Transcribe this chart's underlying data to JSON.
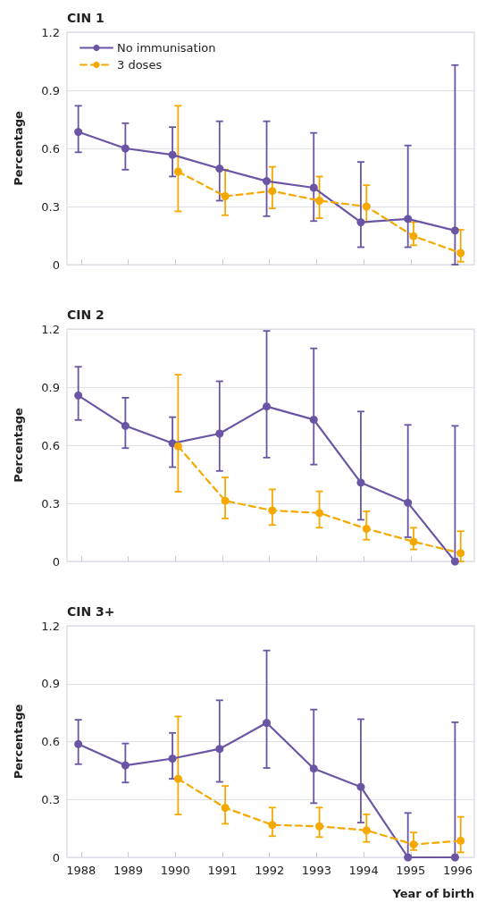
{
  "chart_data": [
    {
      "type": "line",
      "title": "CIN 1",
      "ylabel": "Percentage",
      "xlim": [
        1987.7,
        1996.35
      ],
      "xticks": [
        1988,
        1989,
        1990,
        1991,
        1992,
        1993,
        1994,
        1995,
        1996
      ],
      "ylim": [
        0,
        1.2
      ],
      "yticks": [
        0,
        0.3,
        0.6,
        0.9,
        1.2
      ],
      "grid": "y",
      "marker": "circle",
      "legend": "top left",
      "tick_labels": "y",
      "series": [
        {
          "name": "No immunisation",
          "color": "#6a55a5",
          "line_style": "solid",
          "x": [
            1987.94,
            1988.94,
            1989.94,
            1990.94,
            1991.94,
            1992.94,
            1993.94,
            1994.94,
            1995.94
          ],
          "values": [
            0.685,
            0.6,
            0.567,
            0.496,
            0.431,
            0.397,
            0.219,
            0.236,
            0.176
          ],
          "errors": [
            [
              0.58,
              0.82
            ],
            [
              0.49,
              0.73
            ],
            [
              0.455,
              0.71
            ],
            [
              0.33,
              0.74
            ],
            [
              0.25,
              0.74
            ],
            [
              0.225,
              0.68
            ],
            [
              0.09,
              0.53
            ],
            [
              0.09,
              0.615
            ],
            [
              0,
              1.03
            ]
          ]
        },
        {
          "name": "3 doses",
          "color": "#f5a800",
          "line_style": "dashed",
          "x": [
            1990.06,
            1991.06,
            1992.06,
            1993.06,
            1994.06,
            1995.06,
            1996.06
          ],
          "values": [
            0.48,
            0.353,
            0.38,
            0.33,
            0.3,
            0.147,
            0.06
          ],
          "errors": [
            [
              0.275,
              0.82
            ],
            [
              0.255,
              0.49
            ],
            [
              0.29,
              0.505
            ],
            [
              0.24,
              0.455
            ],
            [
              0.22,
              0.41
            ],
            [
              0.1,
              0.22
            ],
            [
              0.015,
              0.18
            ]
          ]
        }
      ]
    },
    {
      "type": "line",
      "title": "CIN 2",
      "ylabel": "Percentage",
      "xlim": [
        1987.7,
        1996.35
      ],
      "xticks": [
        1988,
        1989,
        1990,
        1991,
        1992,
        1993,
        1994,
        1995,
        1996
      ],
      "ylim": [
        0,
        1.2
      ],
      "yticks": [
        0,
        0.3,
        0.6,
        0.9,
        1.2
      ],
      "grid": "y",
      "marker": "circle",
      "tick_labels": "y",
      "series": [
        {
          "color": "#6a55a5",
          "line_style": "solid",
          "x": [
            1987.94,
            1988.94,
            1989.94,
            1990.94,
            1991.94,
            1992.94,
            1993.94,
            1994.94,
            1995.94
          ],
          "values": [
            0.857,
            0.7,
            0.61,
            0.66,
            0.8,
            0.732,
            0.407,
            0.303,
            0
          ],
          "errors": [
            [
              0.73,
              1.005
            ],
            [
              0.585,
              0.845
            ],
            [
              0.487,
              0.745
            ],
            [
              0.467,
              0.93
            ],
            [
              0.536,
              1.19
            ],
            [
              0.5,
              1.1
            ],
            [
              0.215,
              0.774
            ],
            [
              0.125,
              0.705
            ],
            [
              0,
              0.7
            ]
          ]
        },
        {
          "color": "#f5a800",
          "line_style": "dashed",
          "x": [
            1990.06,
            1991.06,
            1992.06,
            1993.06,
            1994.06,
            1995.06,
            1996.06
          ],
          "values": [
            0.595,
            0.313,
            0.263,
            0.25,
            0.169,
            0.102,
            0.043
          ],
          "errors": [
            [
              0.36,
              0.964
            ],
            [
              0.222,
              0.434
            ],
            [
              0.188,
              0.372
            ],
            [
              0.174,
              0.362
            ],
            [
              0.112,
              0.259
            ],
            [
              0.062,
              0.174
            ],
            [
              0,
              0.156
            ]
          ]
        }
      ]
    },
    {
      "type": "line",
      "title": "CIN 3+",
      "ylabel": "Percentage",
      "xlabel": "Year of birth",
      "xlim": [
        1987.7,
        1996.35
      ],
      "xticks": [
        1988,
        1989,
        1990,
        1991,
        1992,
        1993,
        1994,
        1995,
        1996
      ],
      "ylim": [
        0,
        1.2
      ],
      "yticks": [
        0,
        0.3,
        0.6,
        0.9,
        1.2
      ],
      "grid": "y",
      "marker": "circle",
      "series": [
        {
          "color": "#6a55a5",
          "line_style": "solid",
          "x": [
            1987.94,
            1988.94,
            1989.94,
            1990.94,
            1991.94,
            1992.94,
            1993.94,
            1994.94,
            1995.94
          ],
          "values": [
            0.587,
            0.477,
            0.512,
            0.562,
            0.697,
            0.46,
            0.365,
            0,
            0
          ],
          "errors": [
            [
              0.483,
              0.713
            ],
            [
              0.388,
              0.59
            ],
            [
              0.407,
              0.645
            ],
            [
              0.391,
              0.814
            ],
            [
              0.463,
              1.072
            ],
            [
              0.281,
              0.766
            ],
            [
              0.18,
              0.716
            ],
            [
              0,
              0.23
            ],
            [
              0,
              0.7
            ]
          ]
        },
        {
          "color": "#f5a800",
          "line_style": "dashed",
          "x": [
            1990.06,
            1991.06,
            1992.06,
            1993.06,
            1994.06,
            1995.06,
            1996.06
          ],
          "values": [
            0.407,
            0.257,
            0.168,
            0.161,
            0.14,
            0.067,
            0.086
          ],
          "errors": [
            [
              0.222,
              0.73
            ],
            [
              0.174,
              0.37
            ],
            [
              0.11,
              0.258
            ],
            [
              0.105,
              0.258
            ],
            [
              0.08,
              0.223
            ],
            [
              0.038,
              0.129
            ],
            [
              0.026,
              0.21
            ]
          ]
        }
      ]
    }
  ]
}
